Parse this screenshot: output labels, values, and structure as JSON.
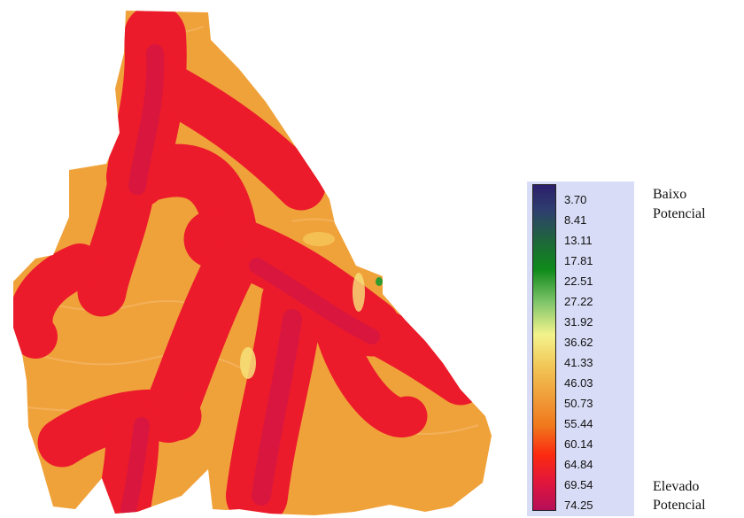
{
  "legend": {
    "ticks": [
      "3.70",
      "8.41",
      "13.11",
      "17.81",
      "22.51",
      "27.22",
      "31.92",
      "36.62",
      "41.33",
      "46.03",
      "50.73",
      "55.44",
      "60.14",
      "64.84",
      "69.54",
      "74.25"
    ],
    "top_label_1": "Baixo",
    "top_label_2": "Potencial",
    "bottom_label_1": "Elevado",
    "bottom_label_2": "Potencial"
  },
  "colors": {
    "high_red": "#ff1a14",
    "crimson": "#e0163e",
    "orange": "#f0a23a",
    "yellow": "#f6e27a",
    "green": "#2f9b2f"
  }
}
